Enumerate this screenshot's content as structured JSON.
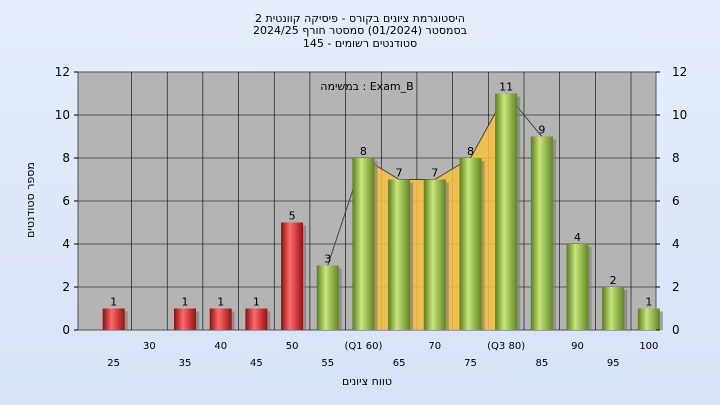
{
  "title_lines": [
    "היסטוגרמת ציונים בקורס - פיסיקה קוונטית 2",
    "בסמסטר  (01/2024)  סמסטר חורף 2024/25",
    "סטודנטים רשומים - 145"
  ],
  "chart_data": {
    "type": "bar",
    "ylabel": "מספר סטודנטים",
    "xlabel": "טווח ציונים",
    "annotation": "במשימה : Exam_B",
    "ylim": [
      0,
      12
    ],
    "yticks": [
      0,
      2,
      4,
      6,
      8,
      10,
      12
    ],
    "grid": true,
    "categories": [
      25,
      30,
      35,
      40,
      45,
      50,
      55,
      60,
      65,
      70,
      75,
      80,
      85,
      90,
      95,
      100
    ],
    "tick_labels": [
      "25",
      "30",
      "35",
      "40",
      "45",
      "50",
      "55",
      "(Q1 60)",
      "65",
      "70",
      "75",
      "(Q3 80)",
      "85",
      "90",
      "95",
      "100"
    ],
    "values": [
      1,
      0,
      1,
      1,
      1,
      5,
      3,
      8,
      7,
      7,
      8,
      11,
      9,
      4,
      2,
      1
    ],
    "data_labels": [
      "1",
      "",
      "1",
      "1",
      "1",
      "5",
      "3",
      "8",
      "7",
      "7",
      "8",
      "11",
      "9",
      "4",
      "2",
      "1"
    ],
    "colors": {
      "fail": "#d42020",
      "pass": "#8fbf3a",
      "iqr": "#f8c040",
      "background": "#b4b4b4"
    }
  }
}
